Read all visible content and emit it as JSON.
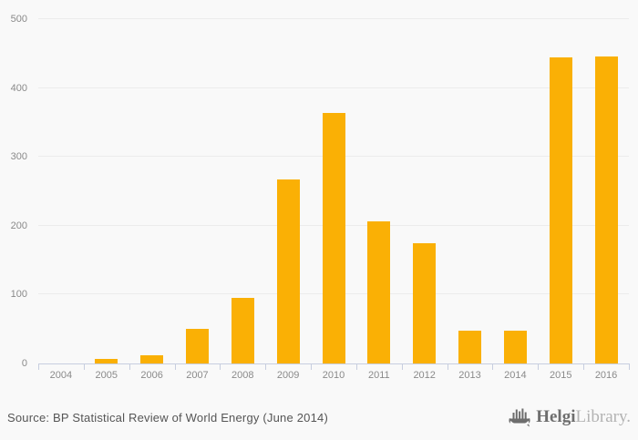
{
  "chart_data": {
    "type": "bar",
    "title": "",
    "xlabel": "",
    "ylabel": "",
    "categories": [
      "2004",
      "2005",
      "2006",
      "2007",
      "2008",
      "2009",
      "2010",
      "2011",
      "2012",
      "2013",
      "2014",
      "2015",
      "2016"
    ],
    "values": [
      0,
      7,
      12,
      50,
      95,
      267,
      364,
      206,
      174,
      47,
      47,
      444,
      446
    ],
    "ylim": [
      0,
      500
    ],
    "yticks": [
      0,
      100,
      200,
      300,
      400,
      500
    ],
    "grid": true,
    "legend": "none",
    "bar_color": "#fab005",
    "gridline_color": "#ececec",
    "axis_color": "#c7cedf",
    "label_color": "#8a8a8a",
    "background_color": "#f9f9f9"
  },
  "footer": {
    "source": "Source: BP Statistical Review of World Energy (June 2014)",
    "logo": {
      "icon": "helgi-ship-icon",
      "brand_bold": "Helgi",
      "brand_light": "Library."
    }
  }
}
